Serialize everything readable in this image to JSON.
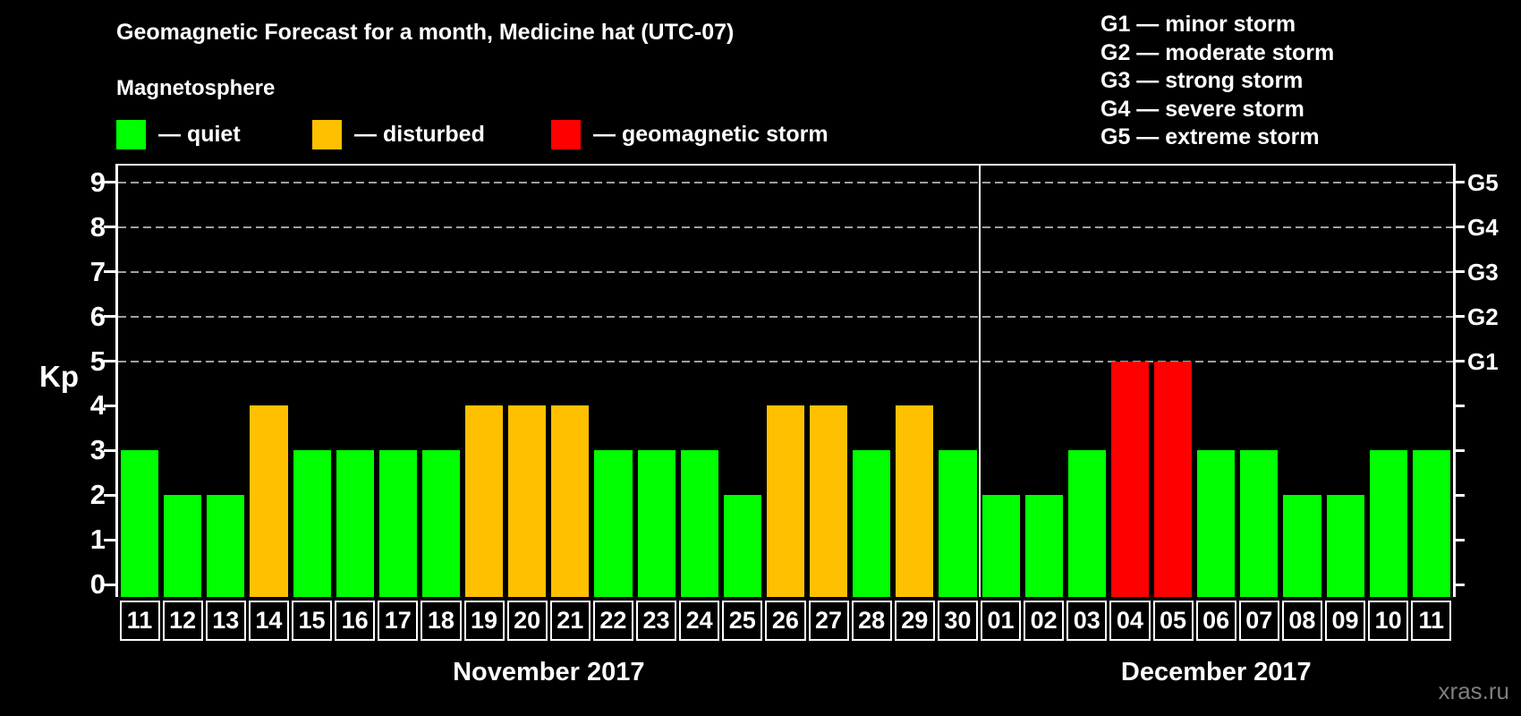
{
  "title": "Geomagnetic Forecast for a month, Medicine hat (UTC-07)",
  "subtitle": "Magnetosphere",
  "legend": {
    "items": [
      {
        "name": "quiet",
        "label": "— quiet",
        "color": "#00ff00"
      },
      {
        "name": "disturbed",
        "label": "— disturbed",
        "color": "#ffc000"
      },
      {
        "name": "geomagnetic-storm",
        "label": "— geomagnetic storm",
        "color": "#ff0000"
      }
    ]
  },
  "storm_scale": [
    "G1 — minor storm",
    "G2 — moderate storm",
    "G3 — strong storm",
    "G4 — severe storm",
    "G5 — extreme storm"
  ],
  "y_axis": {
    "label": "Kp",
    "ticks": [
      "0",
      "1",
      "2",
      "3",
      "4",
      "5",
      "6",
      "7",
      "8",
      "9"
    ]
  },
  "right_axis": {
    "labels": [
      {
        "value": 5,
        "text": "G1"
      },
      {
        "value": 6,
        "text": "G2"
      },
      {
        "value": 7,
        "text": "G3"
      },
      {
        "value": 8,
        "text": "G4"
      },
      {
        "value": 9,
        "text": "G5"
      }
    ]
  },
  "watermark": "xras.ru",
  "chart_data": {
    "type": "bar",
    "title": "Geomagnetic Forecast for a month, Medicine hat (UTC-07)",
    "xlabel": "",
    "ylabel": "Kp",
    "ylim": [
      0,
      9
    ],
    "grid_values": [
      5,
      6,
      7,
      8,
      9
    ],
    "legend_position": "top-left",
    "status_colors": {
      "quiet": "#00ff00",
      "disturbed": "#ffc000",
      "storm": "#ff0000"
    },
    "months": [
      {
        "label": "November 2017",
        "days": 20
      },
      {
        "label": "December 2017",
        "days": 11
      }
    ],
    "categories": [
      "11",
      "12",
      "13",
      "14",
      "15",
      "16",
      "17",
      "18",
      "19",
      "20",
      "21",
      "22",
      "23",
      "24",
      "25",
      "26",
      "27",
      "28",
      "29",
      "30",
      "01",
      "02",
      "03",
      "04",
      "05",
      "06",
      "07",
      "08",
      "09",
      "10",
      "11"
    ],
    "values": [
      3,
      2,
      2,
      4,
      3,
      3,
      3,
      3,
      4,
      4,
      4,
      3,
      3,
      3,
      2,
      4,
      4,
      3,
      4,
      3,
      2,
      2,
      3,
      5,
      5,
      3,
      3,
      2,
      2,
      3,
      3
    ],
    "statuses": [
      "quiet",
      "quiet",
      "quiet",
      "disturbed",
      "quiet",
      "quiet",
      "quiet",
      "quiet",
      "disturbed",
      "disturbed",
      "disturbed",
      "quiet",
      "quiet",
      "quiet",
      "quiet",
      "disturbed",
      "disturbed",
      "quiet",
      "disturbed",
      "quiet",
      "quiet",
      "quiet",
      "quiet",
      "storm",
      "storm",
      "quiet",
      "quiet",
      "quiet",
      "quiet",
      "quiet",
      "quiet"
    ]
  }
}
